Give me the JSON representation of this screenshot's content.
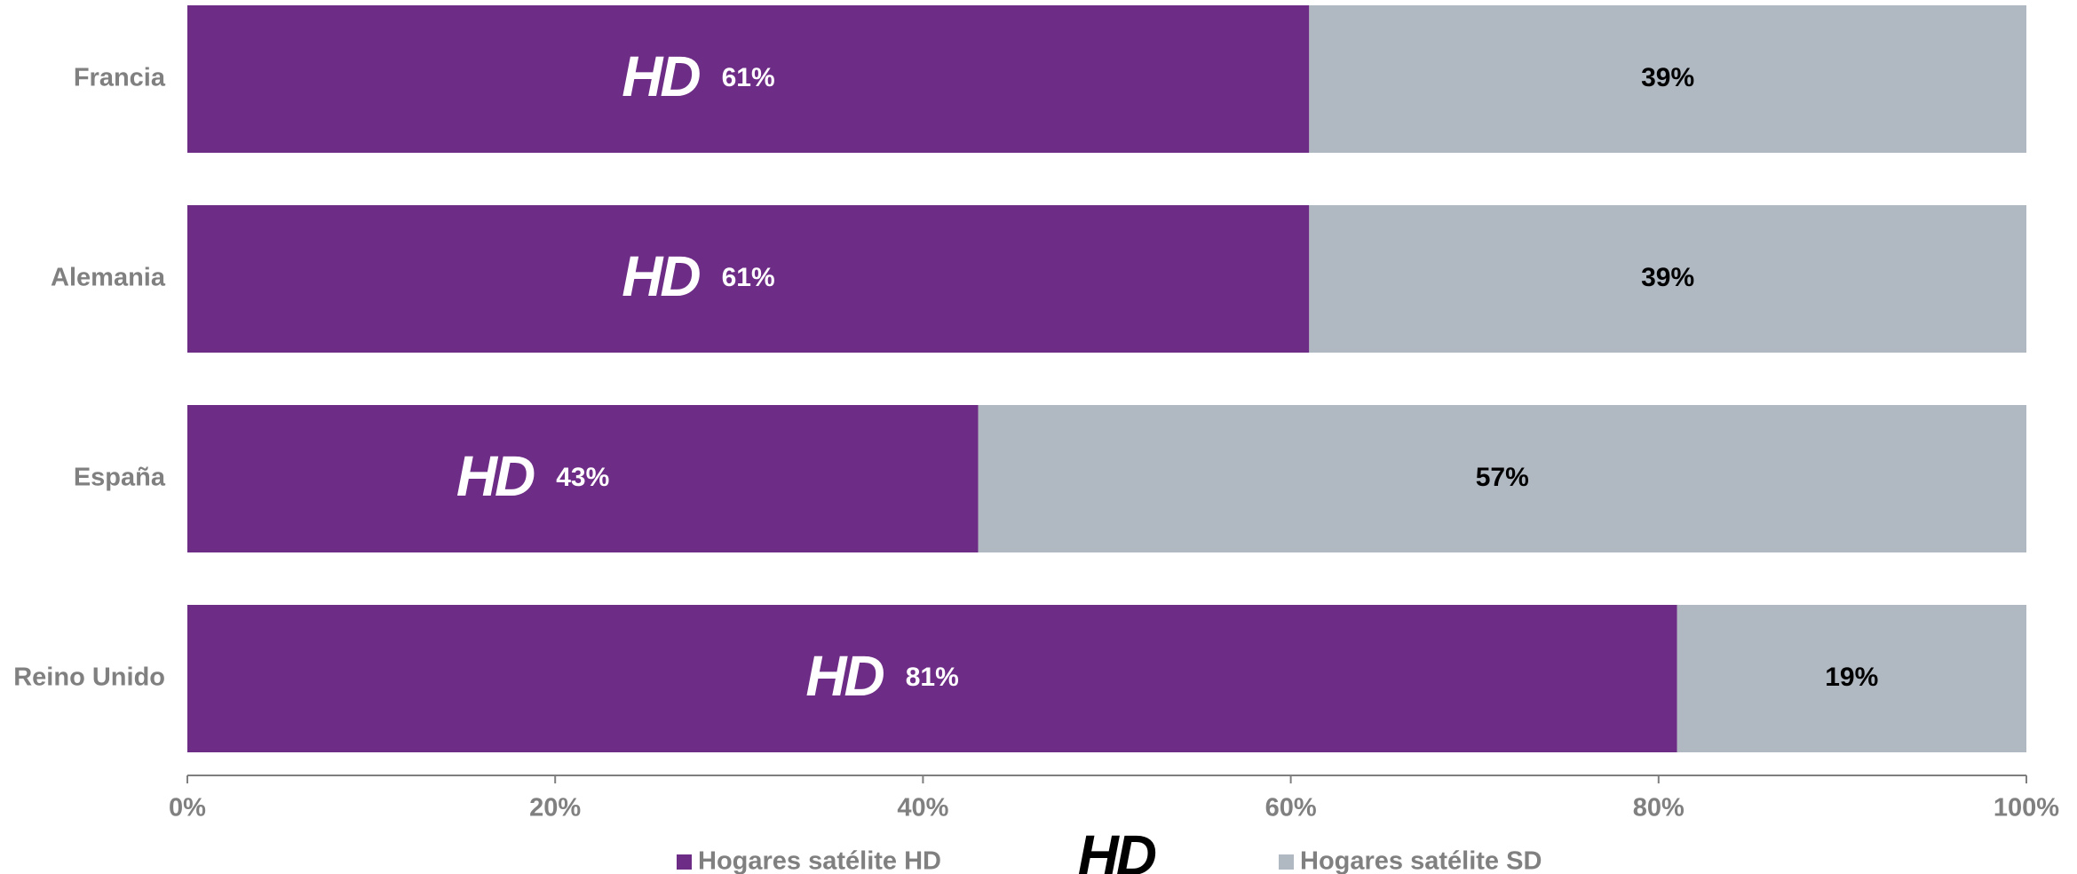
{
  "chart_data": {
    "type": "stacked-barh",
    "categories": [
      "Francia",
      "Alemania",
      "España",
      "Reino Unido"
    ],
    "series": [
      {
        "name": "Hogares satélite HD",
        "color": "#6d2c85",
        "values": [
          61,
          61,
          43,
          81
        ],
        "value_labels": [
          "61%",
          "61%",
          "43%",
          "81%"
        ]
      },
      {
        "name": "Hogares satélite SD",
        "color": "#b0b8c1",
        "values": [
          39,
          39,
          57,
          19
        ],
        "value_labels": [
          "39%",
          "39%",
          "57%",
          "19%"
        ]
      }
    ],
    "logo": "HD",
    "xlim": [
      0,
      100
    ],
    "xticks": [
      {
        "value": 0,
        "label": "0%"
      },
      {
        "value": 20,
        "label": "20%"
      },
      {
        "value": 40,
        "label": "40%"
      },
      {
        "value": 60,
        "label": "60%"
      },
      {
        "value": 80,
        "label": "80%"
      },
      {
        "value": 100,
        "label": "100%"
      }
    ],
    "legend": "bottom"
  }
}
